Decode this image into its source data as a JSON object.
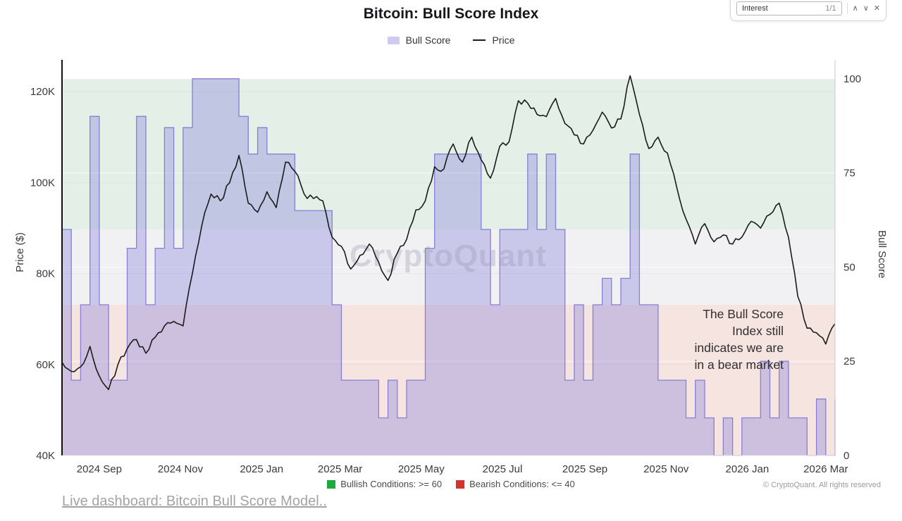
{
  "find_bar": {
    "query": "Interest",
    "match_count": "1/1",
    "previous_icon": "∧",
    "next_icon": "∨",
    "close_icon": "✕"
  },
  "watermark": "CryptoQuant",
  "chart_data": {
    "type": "line",
    "title": "Bitcoin: Bull Score Index",
    "series": [
      {
        "name": "Bull Score",
        "type": "step-area",
        "y_axis": "right",
        "line_color": "#877fd6",
        "fill_color": "rgba(140,133,220,0.38)",
        "legend_swatch_color": "#cfcaf1"
      },
      {
        "name": "Price",
        "type": "line",
        "y_axis": "left",
        "line_color": "#1b1b1b"
      }
    ],
    "left_axis": {
      "label": "Price ($)",
      "min": 40000,
      "max": 127000,
      "ticks": [
        40,
        60,
        80,
        100,
        120
      ],
      "tick_labels": [
        "40K",
        "60K",
        "80K",
        "100K",
        "120K"
      ]
    },
    "right_axis": {
      "label": "Bull Score",
      "min": 0,
      "max": 105,
      "ticks": [
        0,
        25,
        50,
        75,
        100
      ]
    },
    "x_axis": {
      "ticks": [
        {
          "label": "2024 Sep",
          "date": "2024-09-01"
        },
        {
          "label": "2024 Nov",
          "date": "2024-11-01"
        },
        {
          "label": "2025 Jan",
          "date": "2025-01-01"
        },
        {
          "label": "2025 Mar",
          "date": "2025-03-01"
        },
        {
          "label": "2025 May",
          "date": "2025-05-01"
        },
        {
          "label": "2025 Jul",
          "date": "2025-07-01"
        },
        {
          "label": "2025 Sep",
          "date": "2025-09-01"
        },
        {
          "label": "2025 Nov",
          "date": "2025-11-01"
        },
        {
          "label": "2026 Jan",
          "date": "2026-01-01"
        },
        {
          "label": "2026 Mar",
          "date": "2026-03-01"
        }
      ]
    },
    "bands": [
      {
        "meaning": "bullish-zone",
        "from": 60,
        "to": 100,
        "color": "#e3efe7"
      },
      {
        "meaning": "neutral-zone",
        "from": 40,
        "to": 60,
        "color": "#f1f0f3"
      },
      {
        "meaning": "bearish-zone",
        "from": 0,
        "to": 40,
        "color": "#f6e4e1"
      }
    ],
    "annotation": "The Bull Score\nIndex still\nindicates we are\nin a bear market",
    "points_format": [
      "date",
      "price_thousand_usd",
      "bull_score"
    ],
    "points": [
      [
        "2024-08-04",
        60.5,
        60
      ],
      [
        "2024-08-11",
        58.5,
        20
      ],
      [
        "2024-08-18",
        59.5,
        40
      ],
      [
        "2024-08-25",
        64.0,
        90
      ],
      [
        "2024-09-01",
        57.5,
        40
      ],
      [
        "2024-09-08",
        54.5,
        20
      ],
      [
        "2024-09-15",
        60.0,
        20
      ],
      [
        "2024-09-22",
        63.5,
        55
      ],
      [
        "2024-09-29",
        65.5,
        90
      ],
      [
        "2024-10-06",
        62.5,
        40
      ],
      [
        "2024-10-13",
        66.0,
        55
      ],
      [
        "2024-10-20",
        68.5,
        87
      ],
      [
        "2024-10-27",
        69.5,
        55
      ],
      [
        "2024-11-03",
        68.5,
        87
      ],
      [
        "2024-11-10",
        80.0,
        100
      ],
      [
        "2024-11-17",
        90.5,
        100
      ],
      [
        "2024-11-24",
        97.5,
        100
      ],
      [
        "2024-12-01",
        96.0,
        100
      ],
      [
        "2024-12-08",
        100.0,
        100
      ],
      [
        "2024-12-15",
        106.0,
        90
      ],
      [
        "2024-12-22",
        95.5,
        80
      ],
      [
        "2024-12-29",
        93.5,
        87
      ],
      [
        "2025-01-05",
        98.0,
        80
      ],
      [
        "2025-01-12",
        94.5,
        80
      ],
      [
        "2025-01-19",
        104.5,
        80
      ],
      [
        "2025-01-26",
        102.5,
        65
      ],
      [
        "2025-02-02",
        97.5,
        65
      ],
      [
        "2025-02-09",
        96.5,
        65
      ],
      [
        "2025-02-16",
        96.0,
        65
      ],
      [
        "2025-02-23",
        88.0,
        40
      ],
      [
        "2025-03-02",
        86.0,
        20
      ],
      [
        "2025-03-09",
        81.0,
        20
      ],
      [
        "2025-03-16",
        84.0,
        20
      ],
      [
        "2025-03-23",
        86.5,
        20
      ],
      [
        "2025-03-30",
        82.5,
        10
      ],
      [
        "2025-04-06",
        78.5,
        20
      ],
      [
        "2025-04-13",
        84.5,
        10
      ],
      [
        "2025-04-20",
        87.5,
        20
      ],
      [
        "2025-04-27",
        94.0,
        20
      ],
      [
        "2025-05-04",
        96.0,
        55
      ],
      [
        "2025-05-11",
        103.5,
        80
      ],
      [
        "2025-05-18",
        103.0,
        80
      ],
      [
        "2025-05-25",
        108.5,
        80
      ],
      [
        "2025-06-01",
        104.5,
        80
      ],
      [
        "2025-06-08",
        110.0,
        80
      ],
      [
        "2025-06-15",
        105.0,
        60
      ],
      [
        "2025-06-22",
        101.0,
        40
      ],
      [
        "2025-06-29",
        108.0,
        60
      ],
      [
        "2025-07-06",
        109.0,
        60
      ],
      [
        "2025-07-13",
        118.0,
        60
      ],
      [
        "2025-07-20",
        117.5,
        80
      ],
      [
        "2025-07-27",
        115.0,
        60
      ],
      [
        "2025-08-03",
        114.5,
        80
      ],
      [
        "2025-08-10",
        118.5,
        60
      ],
      [
        "2025-08-17",
        113.0,
        20
      ],
      [
        "2025-08-24",
        110.5,
        40
      ],
      [
        "2025-08-31",
        108.5,
        20
      ],
      [
        "2025-09-07",
        111.5,
        40
      ],
      [
        "2025-09-14",
        115.5,
        47
      ],
      [
        "2025-09-21",
        112.0,
        40
      ],
      [
        "2025-09-28",
        114.0,
        47
      ],
      [
        "2025-10-05",
        123.5,
        80
      ],
      [
        "2025-10-12",
        115.0,
        40
      ],
      [
        "2025-10-19",
        107.5,
        40
      ],
      [
        "2025-10-26",
        110.0,
        20
      ],
      [
        "2025-11-02",
        106.5,
        20
      ],
      [
        "2025-11-09",
        99.0,
        20
      ],
      [
        "2025-11-16",
        92.0,
        10
      ],
      [
        "2025-11-23",
        86.5,
        20
      ],
      [
        "2025-11-30",
        91.0,
        10
      ],
      [
        "2025-12-07",
        87.0,
        0
      ],
      [
        "2025-12-14",
        88.5,
        10
      ],
      [
        "2025-12-21",
        86.5,
        0
      ],
      [
        "2025-12-28",
        88.0,
        10
      ],
      [
        "2026-01-04",
        91.5,
        10
      ],
      [
        "2026-01-11",
        90.0,
        25
      ],
      [
        "2026-01-18",
        93.0,
        10
      ],
      [
        "2026-01-25",
        95.5,
        25
      ],
      [
        "2026-02-01",
        88.0,
        10
      ],
      [
        "2026-02-08",
        75.0,
        10
      ],
      [
        "2026-02-15",
        68.0,
        0
      ],
      [
        "2026-02-22",
        67.0,
        15
      ],
      [
        "2026-03-01",
        64.5,
        0
      ],
      [
        "2026-03-08",
        69.0,
        15
      ]
    ]
  },
  "conditions_legend": {
    "bullish": {
      "label": "Bullish Conditions: >= 60",
      "color": "#1fa83d"
    },
    "bearish": {
      "label": "Bearish Conditions: <= 40",
      "color": "#d0342c"
    }
  },
  "copyright": "© CryptoQuant. All rights reserved",
  "link_text": "Live dashboard: Bitcoin Bull Score Model.."
}
